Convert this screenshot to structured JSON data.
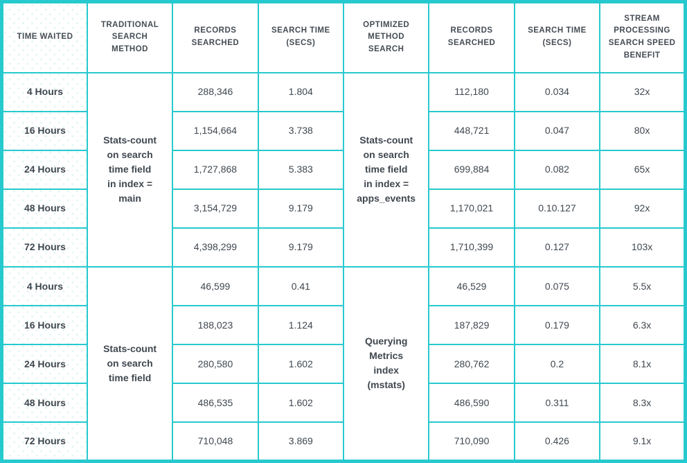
{
  "table": {
    "headers": [
      "TIME WAITED",
      "TRADITIONAL\nSEARCH\nMETHOD",
      "RECORDS\nSEARCHED",
      "SEARCH TIME\n(SECS)",
      "OPTIMIZED\nMETHOD\nSEARCH",
      "RECORDS\nSEARCHED",
      "SEARCH TIME\n(SECS)",
      "STREAM\nPROCESSING\nSEARCH SPEED\nBENEFIT"
    ],
    "groups": [
      {
        "traditional_method": "Stats-count\non search\ntime field\nin index =\nmain",
        "optimized_method": "Stats-count\non search\ntime field\nin index =\napps_events",
        "rows": [
          {
            "time": "4 Hours",
            "trad_records": "288,346",
            "trad_secs": "1.804",
            "opt_records": "112,180",
            "opt_secs": "0.034",
            "benefit": "32x"
          },
          {
            "time": "16 Hours",
            "trad_records": "1,154,664",
            "trad_secs": "3.738",
            "opt_records": "448,721",
            "opt_secs": "0.047",
            "benefit": "80x"
          },
          {
            "time": "24 Hours",
            "trad_records": "1,727,868",
            "trad_secs": "5.383",
            "opt_records": "699,884",
            "opt_secs": "0.082",
            "benefit": "65x"
          },
          {
            "time": "48 Hours",
            "trad_records": "3,154,729",
            "trad_secs": "9.179",
            "opt_records": "1,170,021",
            "opt_secs": "0.10.127",
            "benefit": "92x"
          },
          {
            "time": "72 Hours",
            "trad_records": "4,398,299",
            "trad_secs": "9.179",
            "opt_records": "1,710,399",
            "opt_secs": "0.127",
            "benefit": "103x"
          }
        ]
      },
      {
        "traditional_method": "Stats-count\non search\ntime field",
        "optimized_method": "Querying\nMetrics\nindex\n(mstats)",
        "rows": [
          {
            "time": "4 Hours",
            "trad_records": "46,599",
            "trad_secs": "0.41",
            "opt_records": "46,529",
            "opt_secs": "0.075",
            "benefit": "5.5x"
          },
          {
            "time": "16 Hours",
            "trad_records": "188,023",
            "trad_secs": "1.124",
            "opt_records": "187,829",
            "opt_secs": "0.179",
            "benefit": "6.3x"
          },
          {
            "time": "24 Hours",
            "trad_records": "280,580",
            "trad_secs": "1.602",
            "opt_records": "280,762",
            "opt_secs": "0.2",
            "benefit": "8.1x"
          },
          {
            "time": "48 Hours",
            "trad_records": "486,535",
            "trad_secs": "1.602",
            "opt_records": "486,590",
            "opt_secs": "0.311",
            "benefit": "8.3x"
          },
          {
            "time": "72 Hours",
            "trad_records": "710,048",
            "trad_secs": "3.869",
            "opt_records": "710,090",
            "opt_secs": "0.426",
            "benefit": "9.1x"
          }
        ]
      }
    ],
    "colors": {
      "border_teal": "#26c9ce",
      "text": "#3f474f",
      "dot_texture": "#d9f4f4"
    }
  },
  "chart_data": {
    "type": "table",
    "columns": [
      "TIME WAITED",
      "TRADITIONAL SEARCH METHOD",
      "RECORDS SEARCHED",
      "SEARCH TIME (SECS)",
      "OPTIMIZED METHOD SEARCH",
      "RECORDS SEARCHED",
      "SEARCH TIME (SECS)",
      "STREAM PROCESSING SEARCH SPEED BENEFIT"
    ],
    "rows": [
      [
        "4 Hours",
        "Stats-count on search time field in index = main",
        "288,346",
        "1.804",
        "Stats-count on search time field in index = apps_events",
        "112,180",
        "0.034",
        "32x"
      ],
      [
        "16 Hours",
        "Stats-count on search time field in index = main",
        "1,154,664",
        "3.738",
        "Stats-count on search time field in index = apps_events",
        "448,721",
        "0.047",
        "80x"
      ],
      [
        "24 Hours",
        "Stats-count on search time field in index = main",
        "1,727,868",
        "5.383",
        "Stats-count on search time field in index = apps_events",
        "699,884",
        "0.082",
        "65x"
      ],
      [
        "48 Hours",
        "Stats-count on search time field in index = main",
        "3,154,729",
        "9.179",
        "Stats-count on search time field in index = apps_events",
        "1,170,021",
        "0.10.127",
        "92x"
      ],
      [
        "72 Hours",
        "Stats-count on search time field in index = main",
        "4,398,299",
        "9.179",
        "Stats-count on search time field in index = apps_events",
        "1,710,399",
        "0.127",
        "103x"
      ],
      [
        "4 Hours",
        "Stats-count on search time field",
        "46,599",
        "0.41",
        "Querying Metrics index (mstats)",
        "46,529",
        "0.075",
        "5.5x"
      ],
      [
        "16 Hours",
        "Stats-count on search time field",
        "188,023",
        "1.124",
        "Querying Metrics index (mstats)",
        "187,829",
        "0.179",
        "6.3x"
      ],
      [
        "24 Hours",
        "Stats-count on search time field",
        "280,580",
        "1.602",
        "Querying Metrics index (mstats)",
        "280,762",
        "0.2",
        "8.1x"
      ],
      [
        "48 Hours",
        "Stats-count on search time field",
        "486,535",
        "1.602",
        "Querying Metrics index (mstats)",
        "486,590",
        "0.311",
        "8.3x"
      ],
      [
        "72 Hours",
        "Stats-count on search time field",
        "710,048",
        "3.869",
        "Querying Metrics index (mstats)",
        "710,090",
        "0.426",
        "9.1x"
      ]
    ]
  }
}
